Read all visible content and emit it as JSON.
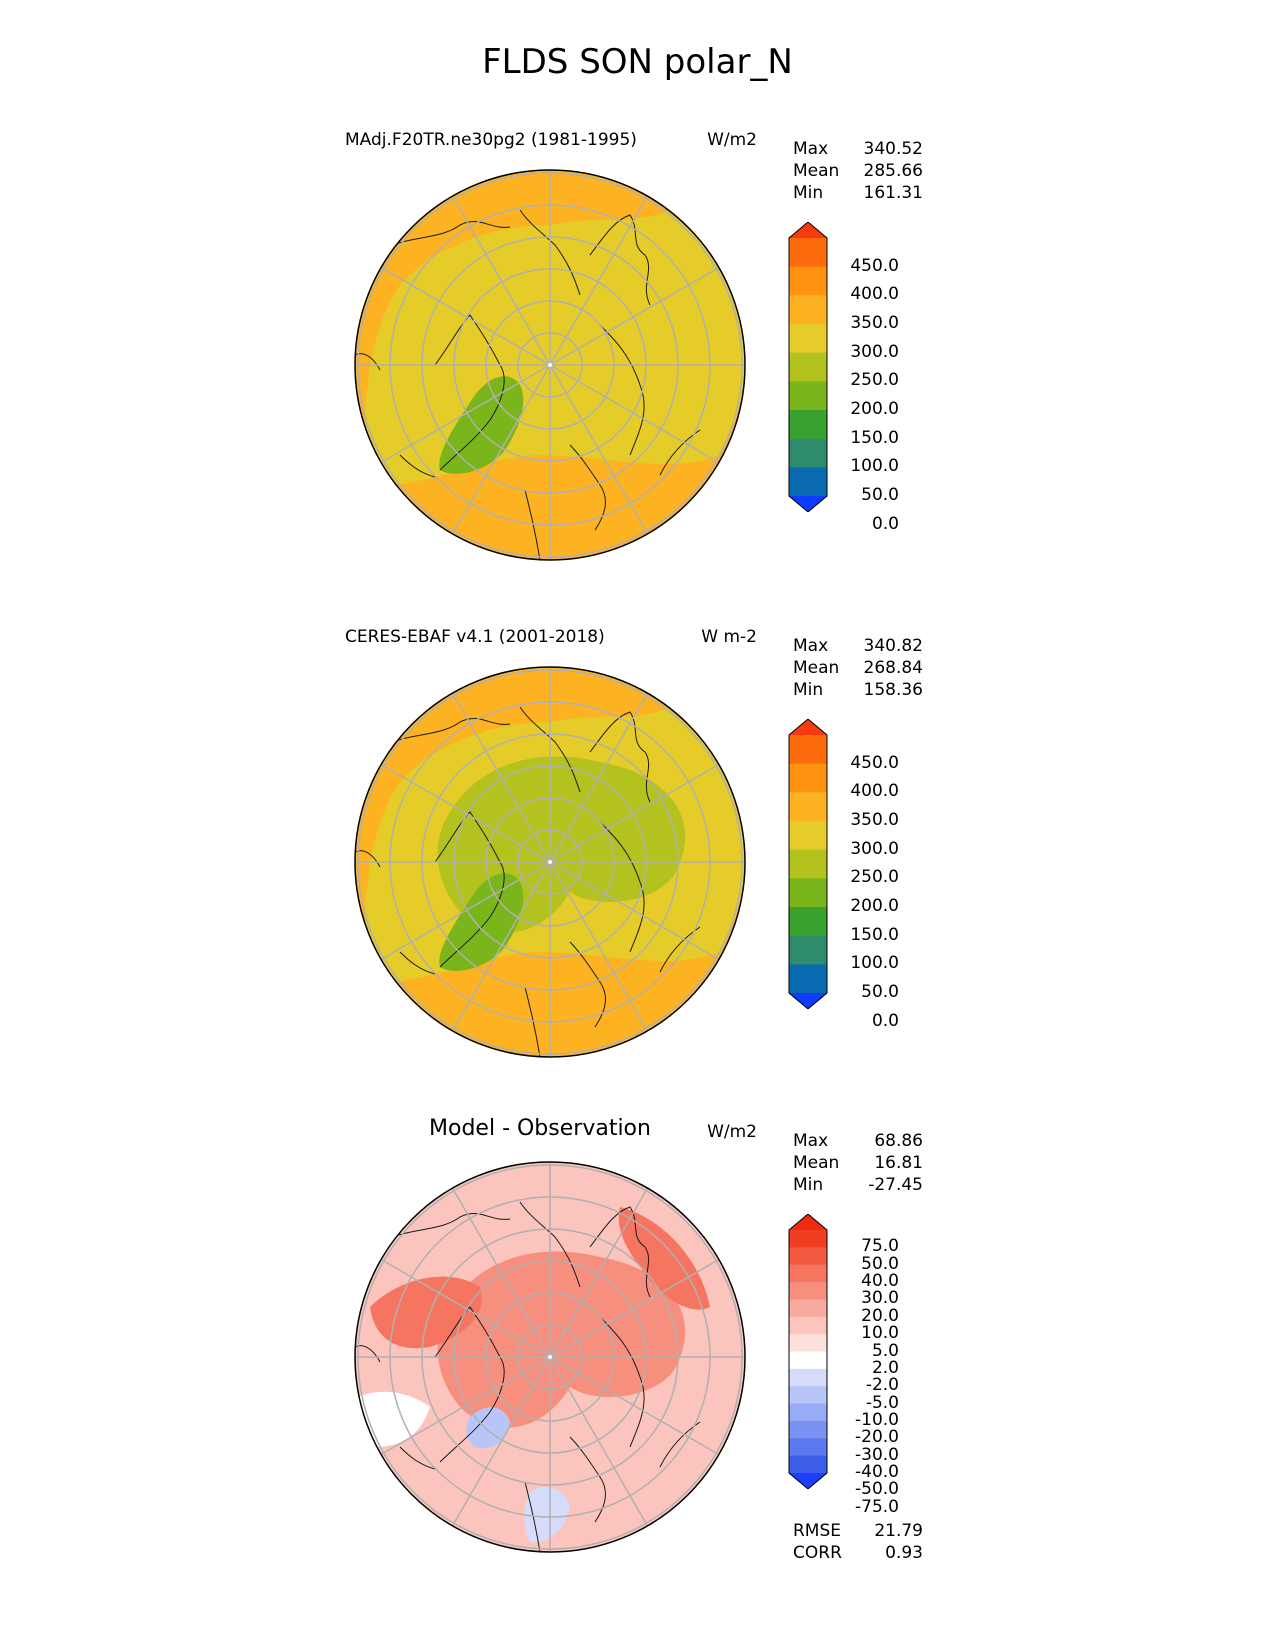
{
  "title": "FLDS SON polar_N",
  "colors": {
    "abs_levels": [
      "#0b3cff",
      "#0a6ab0",
      "#2e8c6a",
      "#3aa02e",
      "#7ab51c",
      "#b3c21e",
      "#e6cc28",
      "#fdb321",
      "#fd9311",
      "#fb6b0d",
      "#f83a0e"
    ],
    "diff_levels": [
      "#1a3fff",
      "#3d5ee8",
      "#5b78ef",
      "#7a92f2",
      "#98abf5",
      "#b7c5f8",
      "#d5dcfb",
      "#ffffff",
      "#fde0dc",
      "#fbc5bd",
      "#f9aa9e",
      "#f78f7f",
      "#f57560",
      "#f35a41",
      "#f13e22",
      "#ef2a12"
    ],
    "coast": "#1a1a1a",
    "grid": "#b0b0b0"
  },
  "panels": [
    {
      "title": "MAdj.F20TR.ne30pg2 (1981-1995)",
      "units": "W/m2",
      "stats": [
        {
          "label": "Max",
          "value": "340.52"
        },
        {
          "label": "Mean",
          "value": "285.66"
        },
        {
          "label": "Min",
          "value": "161.31"
        }
      ],
      "colorbar_labels": [
        "450.0",
        "400.0",
        "350.0",
        "300.0",
        "250.0",
        "200.0",
        "150.0",
        "100.0",
        "50.0",
        "0.0"
      ],
      "map": {
        "base": 6,
        "regions": [
          {
            "level": 7,
            "shape": "outer"
          },
          {
            "level": 4,
            "shape": "greenland"
          }
        ]
      }
    },
    {
      "title": "CERES-EBAF v4.1 (2001-2018)",
      "units": "W m-2",
      "stats": [
        {
          "label": "Max",
          "value": "340.82"
        },
        {
          "label": "Mean",
          "value": "268.84"
        },
        {
          "label": "Min",
          "value": "158.36"
        }
      ],
      "colorbar_labels": [
        "450.0",
        "400.0",
        "350.0",
        "300.0",
        "250.0",
        "200.0",
        "150.0",
        "100.0",
        "50.0",
        "0.0"
      ],
      "map": {
        "base": 6,
        "regions": [
          {
            "level": 7,
            "shape": "outer"
          },
          {
            "level": 5,
            "shape": "central"
          },
          {
            "level": 4,
            "shape": "greenland"
          }
        ]
      }
    },
    {
      "title": "Model - Observation",
      "units": "W/m2",
      "stats": [
        {
          "label": "Max",
          "value": "68.86"
        },
        {
          "label": "Mean",
          "value": "16.81"
        },
        {
          "label": "Min",
          "value": "-27.45"
        }
      ],
      "colorbar_labels": [
        "75.0",
        "50.0",
        "40.0",
        "30.0",
        "20.0",
        "10.0",
        "5.0",
        "2.0",
        "-2.0",
        "-5.0",
        "-10.0",
        "-20.0",
        "-30.0",
        "-40.0",
        "-50.0",
        "-75.0"
      ],
      "extra_stats": [
        {
          "label": "RMSE",
          "value": "21.79"
        },
        {
          "label": "CORR",
          "value": "0.93"
        }
      ],
      "map": {
        "base": 9,
        "regions": [
          {
            "level": 11,
            "shape": "central"
          },
          {
            "level": 12,
            "shape": "blob_a"
          },
          {
            "level": 12,
            "shape": "blob_b"
          },
          {
            "level": 7,
            "shape": "white_patch"
          },
          {
            "level": 5,
            "shape": "blue_patch"
          },
          {
            "level": 6,
            "shape": "blue_patch2"
          }
        ]
      }
    }
  ]
}
